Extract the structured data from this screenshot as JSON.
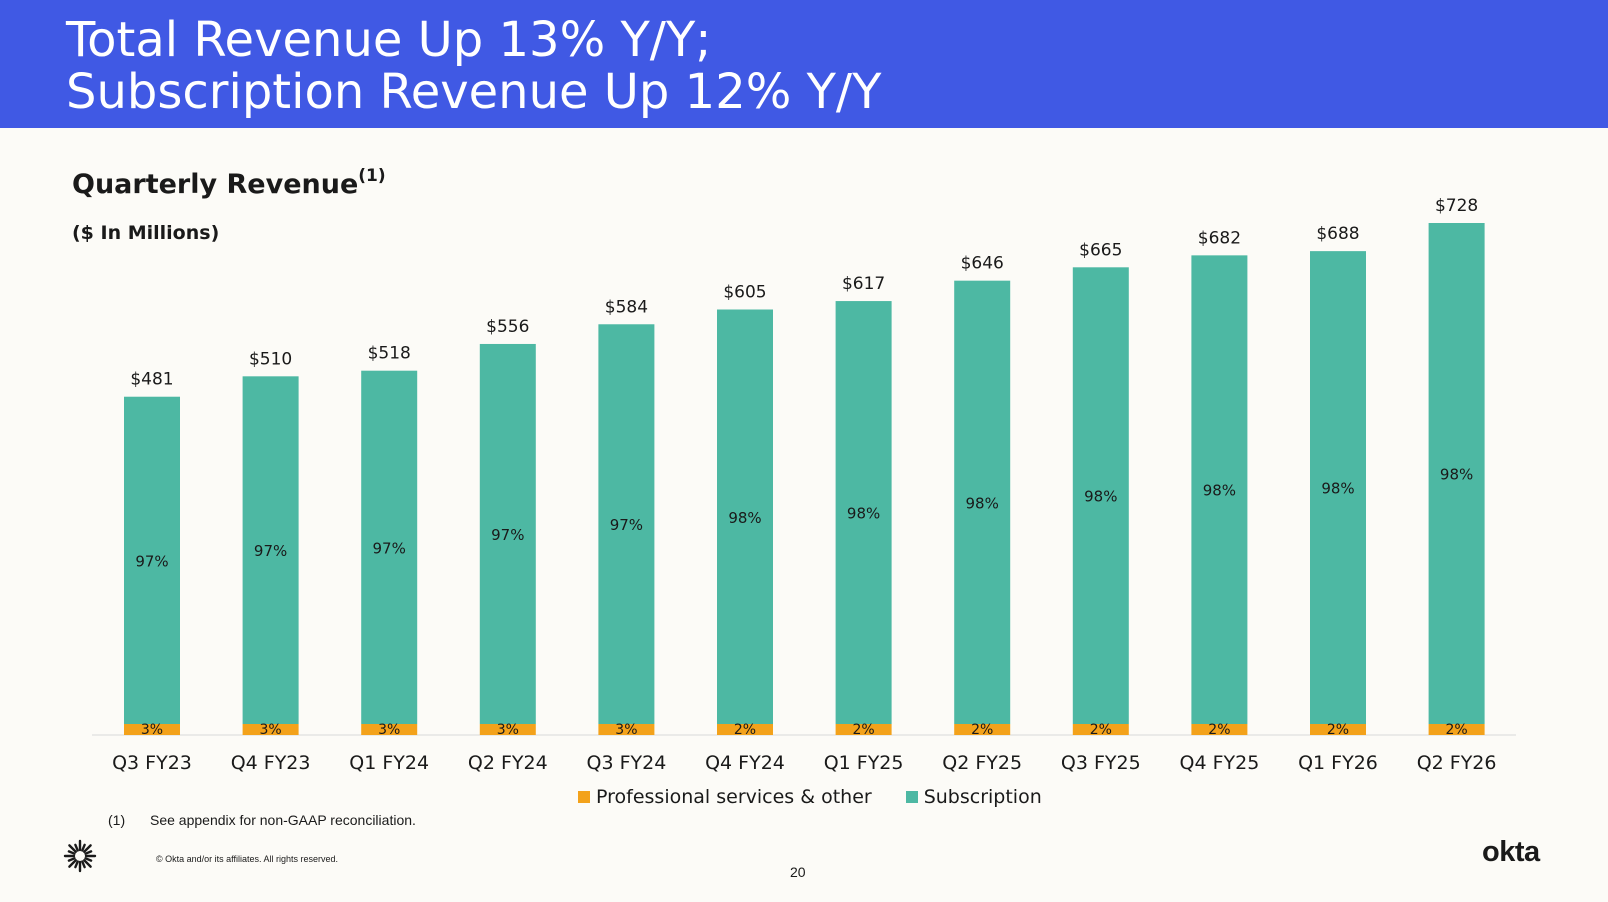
{
  "header": {
    "title_line1": "Total Revenue Up 13% Y/Y;",
    "title_line2": "Subscription Revenue Up 12% Y/Y"
  },
  "chart_data": {
    "type": "bar",
    "stacked": true,
    "title": "Quarterly Revenue",
    "title_footnote_marker": "(1)",
    "subtitle": "($ In Millions)",
    "categories": [
      "Q3 FY23",
      "Q4 FY23",
      "Q1 FY24",
      "Q2 FY24",
      "Q3 FY24",
      "Q4 FY24",
      "Q1 FY25",
      "Q2 FY25",
      "Q3 FY25",
      "Q4 FY25",
      "Q1 FY26",
      "Q2 FY26"
    ],
    "totals": [
      481,
      510,
      518,
      556,
      584,
      605,
      617,
      646,
      665,
      682,
      688,
      728
    ],
    "total_labels": [
      "$481",
      "$510",
      "$518",
      "$556",
      "$584",
      "$605",
      "$617",
      "$646",
      "$665",
      "$682",
      "$688",
      "$728"
    ],
    "series": [
      {
        "name": "Professional services & other",
        "color": "#f3a21b",
        "share_percent": [
          3,
          3,
          3,
          3,
          3,
          2,
          2,
          2,
          2,
          2,
          2,
          2
        ],
        "labels": [
          "3%",
          "3%",
          "3%",
          "3%",
          "3%",
          "2%",
          "2%",
          "2%",
          "2%",
          "2%",
          "2%",
          "2%"
        ]
      },
      {
        "name": "Subscription",
        "color": "#4db8a3",
        "share_percent": [
          97,
          97,
          97,
          97,
          97,
          98,
          98,
          98,
          98,
          98,
          98,
          98
        ],
        "labels": [
          "97%",
          "97%",
          "97%",
          "97%",
          "97%",
          "98%",
          "98%",
          "98%",
          "98%",
          "98%",
          "98%",
          "98%"
        ]
      }
    ],
    "ylim": [
      0,
      740
    ],
    "grid": false,
    "legend_position": "bottom"
  },
  "legend": {
    "items": [
      {
        "label": "Professional services & other",
        "color": "#f3a21b"
      },
      {
        "label": "Subscription",
        "color": "#4db8a3"
      }
    ]
  },
  "footnote": {
    "marker": "(1)",
    "text": "See appendix for non-GAAP reconciliation."
  },
  "footer": {
    "copyright": "© Okta and/or its affiliates. All rights reserved.",
    "page_number": "20",
    "brand": "okta"
  }
}
